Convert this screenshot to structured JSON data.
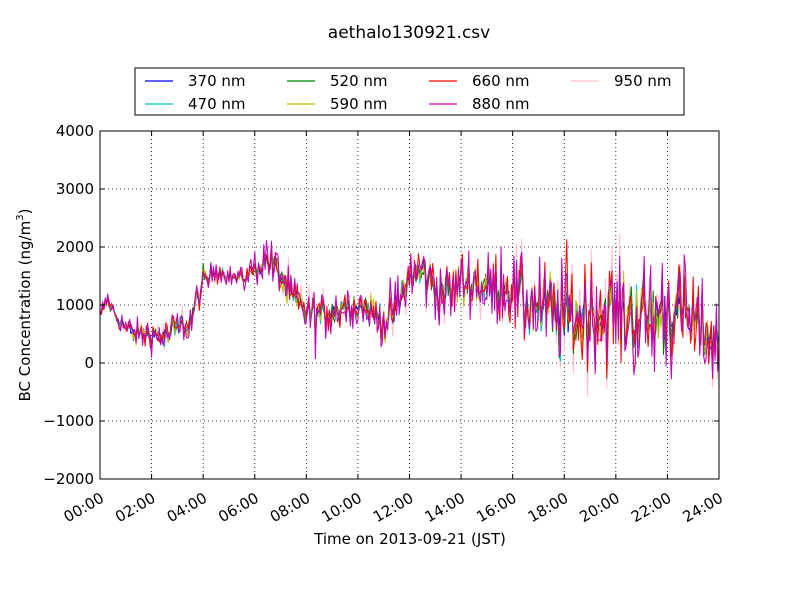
{
  "chart_data": {
    "type": "line",
    "title": "aethalo130921.csv",
    "xlabel": "Time on 2013-09-21 (JST)",
    "ylabel": "BC Concentration (ng/m",
    "ylabel_sup": "3",
    "ylabel_tail": ")",
    "xlim": [
      "00:00",
      "24:00"
    ],
    "ylim": [
      -2000,
      4000
    ],
    "grid": true,
    "legend_position": "top-center",
    "x_ticks": [
      "00:00",
      "02:00",
      "04:00",
      "06:00",
      "08:00",
      "10:00",
      "12:00",
      "14:00",
      "16:00",
      "18:00",
      "20:00",
      "22:00",
      "24:00"
    ],
    "y_ticks": [
      "4000",
      "3000",
      "2000",
      "1000",
      "0",
      "−1000",
      "−2000"
    ],
    "series": [
      {
        "name": "370 nm",
        "color": "#0000ff"
      },
      {
        "name": "470 nm",
        "color": "#00bfbf"
      },
      {
        "name": "520 nm",
        "color": "#008000"
      },
      {
        "name": "590 nm",
        "color": "#bfbf00"
      },
      {
        "name": "660 nm",
        "color": "#ff0000"
      },
      {
        "name": "880 nm",
        "color": "#bf00bf"
      },
      {
        "name": "950 nm",
        "color": "#ffc0cb"
      }
    ],
    "baseline": {
      "x_hours": [
        0,
        0.3,
        0.6,
        1,
        1.5,
        2,
        2.5,
        3,
        3.5,
        4,
        4.5,
        5,
        5.5,
        6,
        6.5,
        7,
        7.5,
        8,
        8.5,
        9,
        9.5,
        10,
        10.5,
        11,
        11.5,
        12,
        12.5,
        13,
        13.5,
        14,
        14.5,
        15,
        15.5,
        16,
        16.5,
        17,
        17.5,
        18,
        18.5,
        19,
        19.5,
        20,
        20.5,
        21,
        21.5,
        22,
        22.5,
        23,
        23.5,
        24
      ],
      "y": [
        800,
        1100,
        800,
        600,
        500,
        500,
        450,
        600,
        700,
        1400,
        1600,
        1500,
        1450,
        1600,
        1800,
        1500,
        1100,
        900,
        800,
        900,
        1000,
        1000,
        900,
        700,
        900,
        1500,
        1600,
        1300,
        1200,
        1400,
        1400,
        1300,
        1300,
        1300,
        1000,
        1000,
        900,
        800,
        800,
        900,
        800,
        900,
        800,
        800,
        800,
        900,
        900,
        700,
        500,
        400
      ]
    },
    "volatility": {
      "x_hours": [
        0,
        3,
        4,
        5,
        6,
        7,
        8,
        10,
        12,
        14,
        16,
        18,
        20,
        22,
        24
      ],
      "amplitude": [
        120,
        300,
        250,
        120,
        200,
        400,
        350,
        300,
        450,
        500,
        550,
        800,
        850,
        850,
        600
      ]
    }
  }
}
